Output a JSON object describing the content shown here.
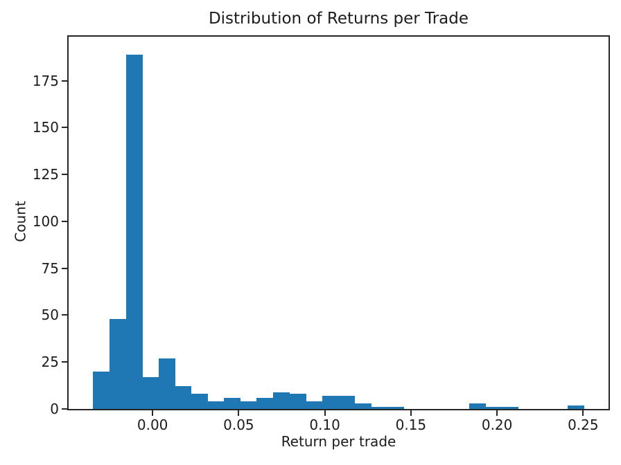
{
  "chart_data": {
    "type": "bar",
    "variant": "histogram",
    "title": "Distribution of Returns per Trade",
    "xlabel": "Return per trade",
    "ylabel": "Count",
    "bar_color": "#1f77b4",
    "axis_color": "#262626",
    "grid": false,
    "legend": "none",
    "bins": {
      "start": -0.0345,
      "width": 0.0095,
      "n": 30
    },
    "counts": [
      20,
      48,
      189,
      17,
      27,
      12,
      8,
      4,
      6,
      4,
      6,
      9,
      8,
      4,
      7,
      7,
      3,
      1,
      1,
      0,
      0,
      0,
      0,
      3,
      1,
      1,
      0,
      0,
      0,
      2
    ],
    "total_trades": 388,
    "xlim": [
      -0.04875,
      0.26475
    ],
    "ylim": [
      0,
      198.45
    ],
    "x_ticks": [
      0.0,
      0.05,
      0.1,
      0.15,
      0.2,
      0.25
    ],
    "x_tick_labels": [
      "0.00",
      "0.05",
      "0.10",
      "0.15",
      "0.20",
      "0.25"
    ],
    "y_ticks": [
      0,
      25,
      50,
      75,
      100,
      125,
      150,
      175
    ],
    "y_tick_labels": [
      "0",
      "25",
      "50",
      "75",
      "100",
      "125",
      "150",
      "175"
    ]
  }
}
